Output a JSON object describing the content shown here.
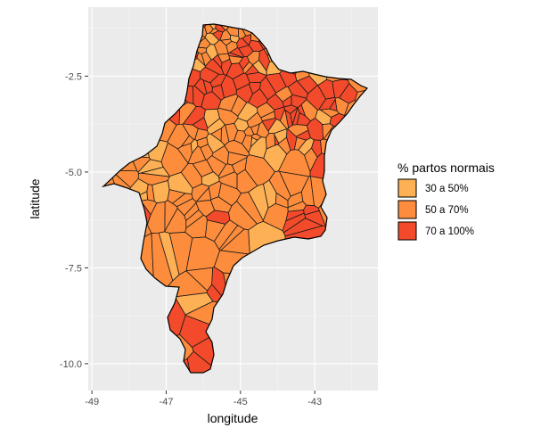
{
  "chart_data": {
    "type": "choropleth map",
    "xlabel": "longitude",
    "ylabel": "latitude",
    "x_ticks": [
      "-49",
      "-47",
      "-45",
      "-43"
    ],
    "y_ticks": [
      "-2.5",
      "-5.0",
      "-7.5",
      "-10.0"
    ],
    "xlim": [
      -49.1,
      -41.3
    ],
    "ylim": [
      -10.7,
      -0.7
    ],
    "panel_background": "#ebebeb",
    "grid": "white",
    "legend": {
      "title": "% partos normais",
      "position": "right",
      "items": [
        {
          "label": "30 a 50%",
          "color": "#fdb054"
        },
        {
          "label": "50 a 70%",
          "color": "#fd8d3c"
        },
        {
          "label": "70 a 100%",
          "color": "#f24a2b"
        }
      ]
    }
  }
}
